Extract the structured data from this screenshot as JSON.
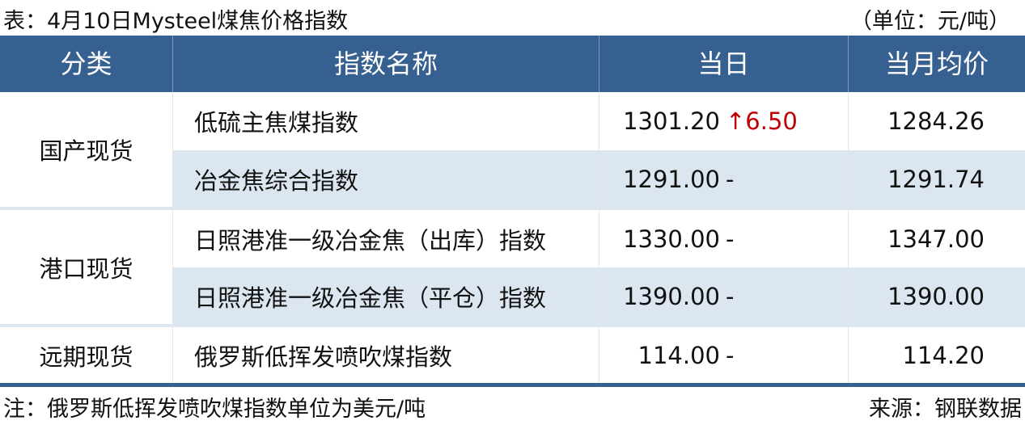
{
  "title": "表：4月10日Mysteel煤焦价格指数",
  "unit": "（单位：元/吨）",
  "header": {
    "category": "分类",
    "name": "指数名称",
    "day": "当日",
    "month_avg": "当月均价"
  },
  "colors": {
    "header_bg": "#36608f",
    "alt_row": "#dce6f0",
    "up": "#c00000"
  },
  "groups": [
    {
      "category": "国产现货",
      "rows": [
        {
          "name": "低硫主焦煤指数",
          "value": "1301.20",
          "change": "↑6.50",
          "direction": "up",
          "avg": "1284.26"
        },
        {
          "name": "冶金焦综合指数",
          "value": "1291.00",
          "change": "-",
          "direction": "flat",
          "avg": "1291.74"
        }
      ]
    },
    {
      "category": "港口现货",
      "rows": [
        {
          "name": "日照港准一级冶金焦（出库）指数",
          "value": "1330.00",
          "change": "-",
          "direction": "flat",
          "avg": "1347.00"
        },
        {
          "name": "日照港准一级冶金焦（平仓）指数",
          "value": "1390.00",
          "change": "-",
          "direction": "flat",
          "avg": "1390.00"
        }
      ]
    },
    {
      "category": "远期现货",
      "rows": [
        {
          "name": "俄罗斯低挥发喷吹煤指数",
          "value": "114.00",
          "change": "-",
          "direction": "flat",
          "avg": "114.20"
        }
      ]
    }
  ],
  "footer": {
    "note": "注：俄罗斯低挥发喷吹煤指数单位为美元/吨",
    "source": "来源：钢联数据"
  }
}
